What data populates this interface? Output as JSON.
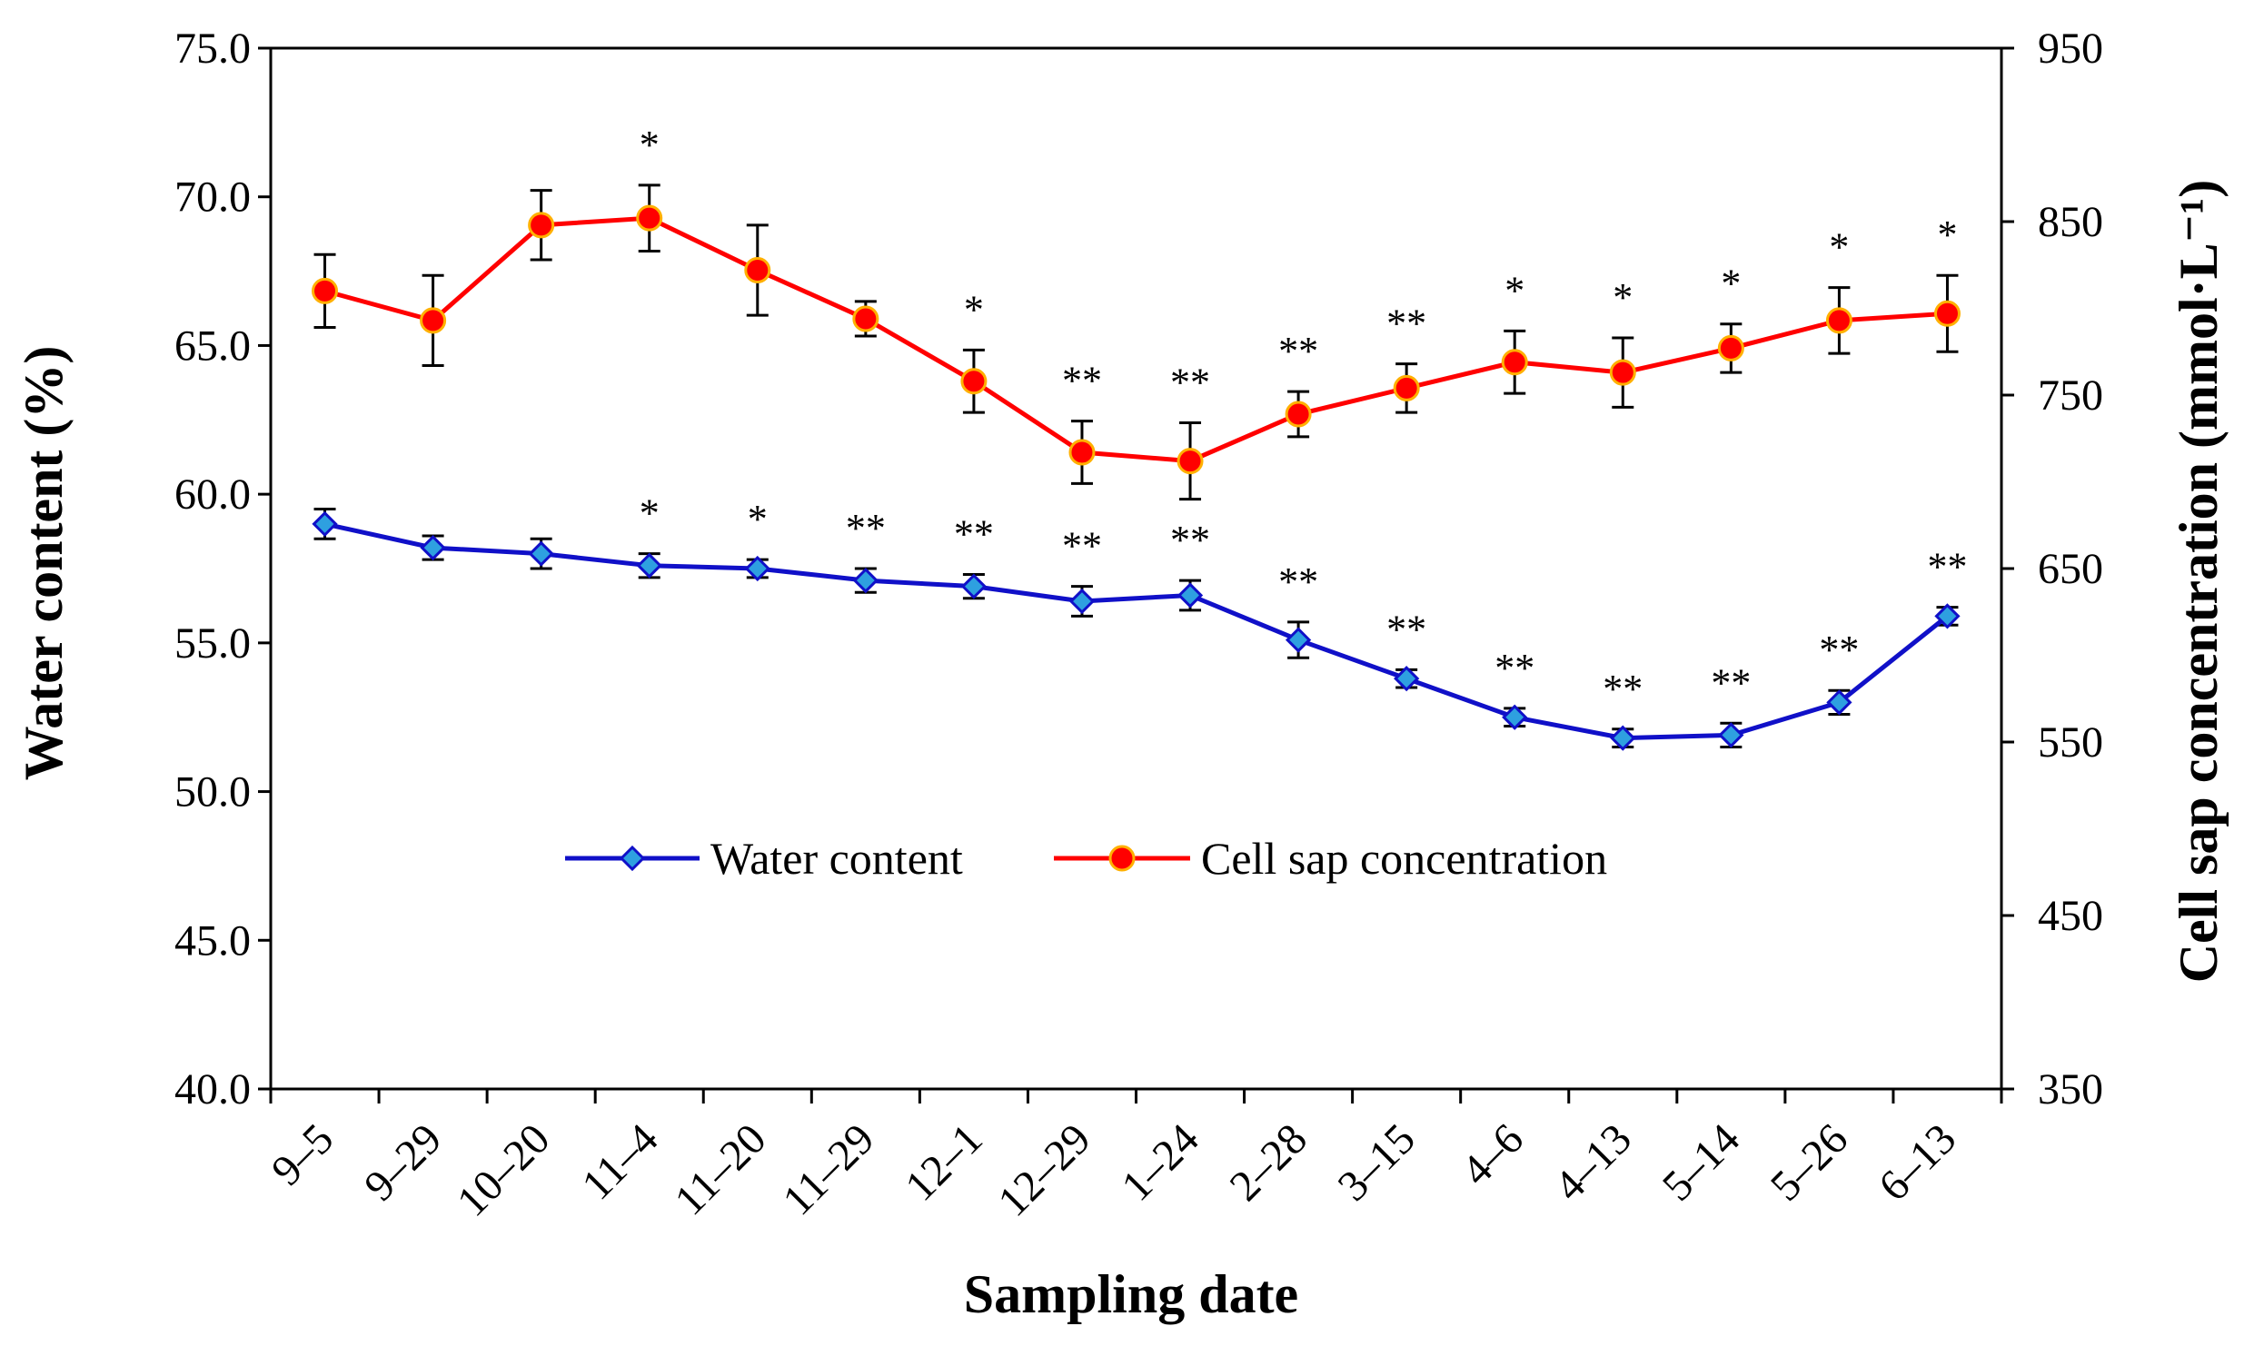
{
  "chart_data": {
    "type": "line",
    "title": "",
    "xlabel": "Sampling date",
    "ylabel_left": "Water content (%)",
    "ylabel_right": "Cell sap concentration (mmol·L⁻¹)",
    "ylim_left": [
      40.0,
      75.0
    ],
    "ylim_right": [
      350,
      950
    ],
    "yticks_left": [
      "40.0",
      "45.0",
      "50.0",
      "55.0",
      "60.0",
      "65.0",
      "70.0",
      "75.0"
    ],
    "yticks_right": [
      "350",
      "450",
      "550",
      "650",
      "750",
      "850",
      "950"
    ],
    "categories": [
      "9–5",
      "9–29",
      "10–20",
      "11–4",
      "11–20",
      "11–29",
      "12–1",
      "12–29",
      "1–24",
      "2–28",
      "3–15",
      "4–6",
      "4–13",
      "5–14",
      "5–26",
      "6–13"
    ],
    "grid": false,
    "legend_position": "center",
    "series": [
      {
        "name": "Water content",
        "axis": "left",
        "color": "#1010c8",
        "marker": "diamond",
        "marker_fill": "#2ea0e0",
        "values": [
          59.0,
          58.2,
          58.0,
          57.6,
          57.5,
          57.1,
          56.9,
          56.4,
          56.6,
          55.1,
          53.8,
          52.5,
          51.8,
          51.9,
          53.0,
          55.9
        ],
        "errors": [
          0.5,
          0.4,
          0.5,
          0.4,
          0.3,
          0.4,
          0.4,
          0.5,
          0.5,
          0.6,
          0.3,
          0.3,
          0.3,
          0.4,
          0.4,
          0.3
        ],
        "significance": [
          "",
          "",
          "",
          "*",
          "*",
          "**",
          "**",
          "**",
          "**",
          "**",
          "**",
          "**",
          "**",
          "**",
          "**",
          "**"
        ]
      },
      {
        "name": "Cell sap concentration",
        "axis": "right",
        "color": "#ff0000",
        "marker": "circle",
        "marker_fill": "#ff0000",
        "marker_edge": "#ffb000",
        "values": [
          810,
          793,
          848,
          852,
          822,
          794,
          758,
          717,
          712,
          739,
          754,
          769,
          763,
          777,
          793,
          797
        ],
        "errors": [
          21,
          26,
          20,
          19,
          26,
          10,
          18,
          18,
          22,
          13,
          14,
          18,
          20,
          14,
          19,
          22
        ],
        "significance": [
          "",
          "",
          "",
          "*",
          "",
          "",
          "*",
          "**",
          "**",
          "**",
          "**",
          "*",
          "*",
          "*",
          "*",
          "*"
        ]
      }
    ]
  }
}
